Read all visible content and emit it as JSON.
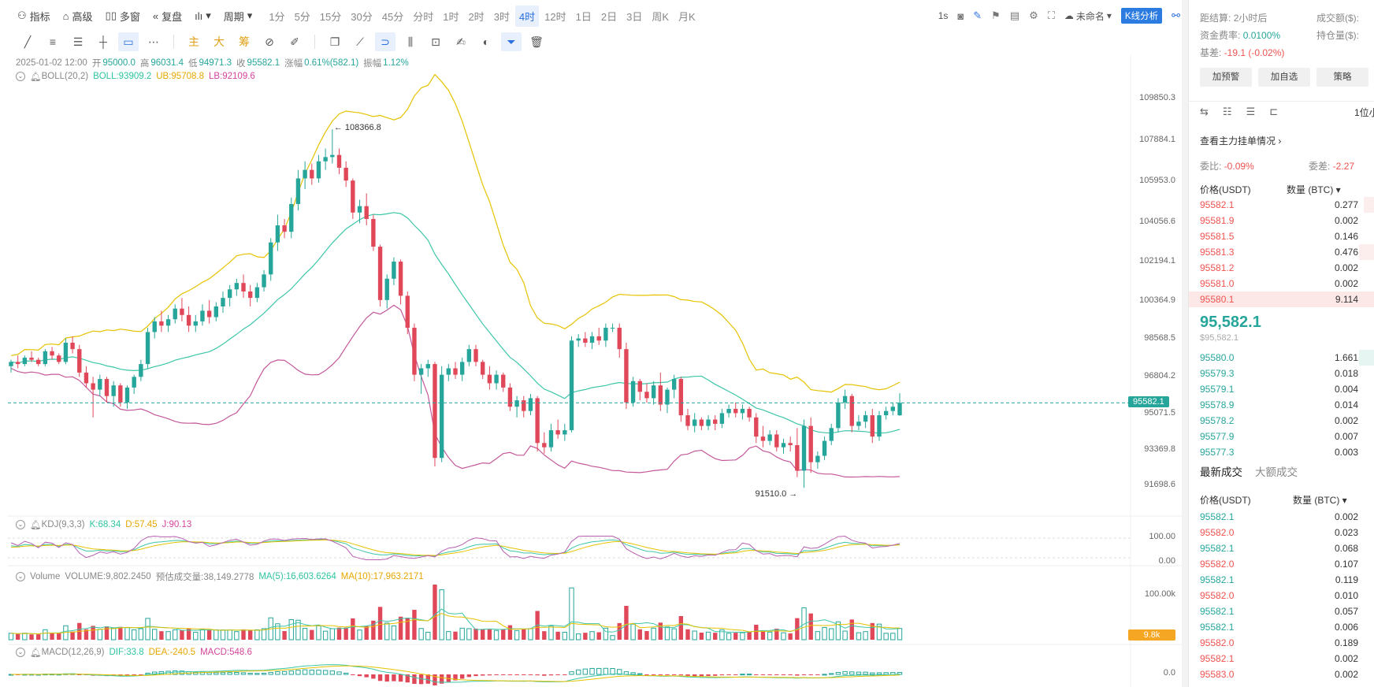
{
  "toolbar": {
    "indicator": "指标",
    "advanced": "高级",
    "multi_window": "多窗",
    "replay": "复盘",
    "period": "周期",
    "intervals": [
      "1分",
      "5分",
      "15分",
      "30分",
      "45分",
      "分时",
      "1时",
      "2时",
      "3时",
      "4时",
      "12时",
      "1日",
      "2日",
      "3日",
      "周K",
      "月K"
    ],
    "active_interval": "4时",
    "resolution": "1s",
    "layout_name": "未命名",
    "kline_analysis": "K线分析"
  },
  "drawbar": {
    "indicators": [
      "主",
      "大",
      "筹"
    ]
  },
  "legend": {
    "date": "2025-01-02 12:00",
    "open_label": "开",
    "open": "95000.0",
    "high_label": "高",
    "high": "96031.4",
    "low_label": "低",
    "low": "94971.3",
    "close_label": "收",
    "close": "95582.1",
    "change_label": "涨幅",
    "change": "0.61%(582.1)",
    "amp_label": "振幅",
    "amp": "1.12%",
    "boll_name": "BOLL(20,2)",
    "boll_mid": "BOLL:93909.2",
    "boll_ub": "UB:95708.8",
    "boll_lb": "LB:92109.6",
    "kdj_name": "KDJ(9,3,3)",
    "kdj_k": "K:68.34",
    "kdj_d": "D:57.45",
    "kdj_j": "J:90.13",
    "vol_name": "Volume",
    "vol_value": "VOLUME:9,802.2450",
    "vol_est": "预估成交量:38,149.2778",
    "vol_ma5": "MA(5):16,603.6264",
    "vol_ma10": "MA(10):17,963.2171",
    "macd_name": "MACD(12,26,9)",
    "macd_dif": "DIF:33.8",
    "macd_dea": "DEA:-240.5",
    "macd_val": "MACD:548.6"
  },
  "price_axis": [
    "109850.3",
    "107884.1",
    "105953.0",
    "104056.6",
    "102194.1",
    "100364.9",
    "98568.5",
    "96804.2",
    "95071.5",
    "93369.8",
    "91698.6"
  ],
  "current_price_tag": "95582.1",
  "kdj_axis": [
    "100.00",
    "0.00"
  ],
  "vol_axis": "100.00k",
  "vol_tag": "9.8k",
  "macd_axis": "0.0",
  "annotations": {
    "high_mark": "108366.8",
    "low_mark": "91510.0"
  },
  "chart_data": {
    "type": "candlestick",
    "interval": "4时",
    "y_range": [
      91200,
      110400
    ],
    "candles": [
      [
        97300,
        97600,
        97000,
        97500
      ],
      [
        97500,
        97800,
        97200,
        97400
      ],
      [
        97400,
        97800,
        97300,
        97700
      ],
      [
        97700,
        98000,
        97500,
        97600
      ],
      [
        97600,
        97700,
        97300,
        97400
      ],
      [
        97400,
        98100,
        97300,
        98000
      ],
      [
        98000,
        98200,
        97600,
        97800
      ],
      [
        97800,
        97900,
        97400,
        97500
      ],
      [
        97500,
        98600,
        97400,
        98400
      ],
      [
        98400,
        98700,
        97900,
        98100
      ],
      [
        98100,
        98300,
        96800,
        97000
      ],
      [
        97000,
        97300,
        96300,
        96500
      ],
      [
        96500,
        96800,
        94900,
        96200
      ],
      [
        96200,
        96900,
        95900,
        96700
      ],
      [
        96700,
        96800,
        95600,
        95900
      ],
      [
        95900,
        96600,
        95400,
        96400
      ],
      [
        96400,
        96500,
        95400,
        95600
      ],
      [
        95600,
        96400,
        95300,
        96300
      ],
      [
        96300,
        96900,
        96000,
        96800
      ],
      [
        96800,
        97600,
        96600,
        97400
      ],
      [
        97400,
        99100,
        97200,
        98900
      ],
      [
        98900,
        99600,
        98600,
        99400
      ],
      [
        99400,
        99900,
        98900,
        99200
      ],
      [
        99200,
        99700,
        98900,
        99500
      ],
      [
        99500,
        100200,
        99300,
        100000
      ],
      [
        100000,
        100500,
        99400,
        99700
      ],
      [
        99700,
        100100,
        98900,
        99200
      ],
      [
        99200,
        99700,
        98900,
        99400
      ],
      [
        99400,
        100200,
        99200,
        99900
      ],
      [
        99900,
        100400,
        99300,
        99600
      ],
      [
        99600,
        100300,
        99400,
        100100
      ],
      [
        100100,
        100800,
        99800,
        100500
      ],
      [
        100500,
        101100,
        100100,
        100900
      ],
      [
        100900,
        101400,
        100600,
        101200
      ],
      [
        101200,
        101600,
        100500,
        100800
      ],
      [
        100800,
        101100,
        100100,
        100500
      ],
      [
        100500,
        101200,
        100300,
        101000
      ],
      [
        101000,
        101800,
        100800,
        101600
      ],
      [
        101600,
        103300,
        101300,
        103100
      ],
      [
        103100,
        104400,
        102700,
        103900
      ],
      [
        103900,
        104200,
        103300,
        103600
      ],
      [
        103600,
        105200,
        103300,
        104900
      ],
      [
        104900,
        106500,
        104600,
        106100
      ],
      [
        106100,
        106900,
        105600,
        106500
      ],
      [
        106500,
        106800,
        105800,
        106100
      ],
      [
        106100,
        107200,
        105900,
        106900
      ],
      [
        106900,
        107500,
        106500,
        107100
      ],
      [
        107100,
        108400,
        106800,
        107200
      ],
      [
        107200,
        107500,
        106300,
        106600
      ],
      [
        106600,
        106900,
        105700,
        106000
      ],
      [
        106000,
        106100,
        104200,
        104500
      ],
      [
        104500,
        105100,
        104000,
        104800
      ],
      [
        104800,
        105400,
        103900,
        104200
      ],
      [
        104200,
        104400,
        102700,
        102900
      ],
      [
        102900,
        103000,
        100100,
        100400
      ],
      [
        100400,
        101600,
        100000,
        101400
      ],
      [
        101400,
        102400,
        101100,
        102200
      ],
      [
        102200,
        102300,
        100200,
        100600
      ],
      [
        100600,
        100800,
        98800,
        99100
      ],
      [
        99100,
        99300,
        96600,
        96900
      ],
      [
        96900,
        97400,
        96000,
        97200
      ],
      [
        97200,
        97600,
        96800,
        97400
      ],
      [
        97400,
        97500,
        92600,
        93000
      ],
      [
        93000,
        97300,
        92800,
        96900
      ],
      [
        96900,
        97400,
        96600,
        97200
      ],
      [
        97200,
        97500,
        96700,
        96900
      ],
      [
        96900,
        97700,
        96600,
        97500
      ],
      [
        97500,
        98300,
        97300,
        98100
      ],
      [
        98100,
        98300,
        97300,
        97500
      ],
      [
        97500,
        97600,
        96700,
        96900
      ],
      [
        96900,
        97300,
        96200,
        96500
      ],
      [
        96500,
        97100,
        96200,
        96900
      ],
      [
        96900,
        97000,
        96100,
        96300
      ],
      [
        96300,
        96500,
        95200,
        95400
      ],
      [
        95400,
        95900,
        94900,
        95700
      ],
      [
        95700,
        95900,
        94900,
        95200
      ],
      [
        95200,
        96000,
        95000,
        95800
      ],
      [
        95800,
        95900,
        93300,
        93700
      ],
      [
        93700,
        94200,
        93200,
        93500
      ],
      [
        93500,
        94600,
        93300,
        94300
      ],
      [
        94300,
        94800,
        93900,
        94100
      ],
      [
        94100,
        94600,
        93800,
        94300
      ],
      [
        94300,
        98700,
        94200,
        98500
      ],
      [
        98500,
        98800,
        98200,
        98600
      ],
      [
        98600,
        98900,
        98200,
        98400
      ],
      [
        98400,
        98900,
        98100,
        98700
      ],
      [
        98700,
        99100,
        98300,
        98500
      ],
      [
        98500,
        99300,
        98200,
        99100
      ],
      [
        99100,
        99300,
        98900,
        99100
      ],
      [
        99100,
        99300,
        97700,
        98100
      ],
      [
        98100,
        98400,
        95300,
        95600
      ],
      [
        95600,
        96800,
        95400,
        96600
      ],
      [
        96600,
        96700,
        95700,
        96100
      ],
      [
        96100,
        96500,
        95600,
        95800
      ],
      [
        95800,
        96600,
        95500,
        96400
      ],
      [
        96400,
        97000,
        95200,
        95500
      ],
      [
        95500,
        96300,
        95100,
        96200
      ],
      [
        96200,
        96900,
        95800,
        96700
      ],
      [
        96700,
        96800,
        94700,
        95000
      ],
      [
        95000,
        95300,
        94300,
        94500
      ],
      [
        94500,
        95100,
        94200,
        94800
      ],
      [
        94800,
        94900,
        94300,
        94500
      ],
      [
        94500,
        95000,
        94300,
        94800
      ],
      [
        94800,
        95000,
        94300,
        94600
      ],
      [
        94600,
        95300,
        94400,
        95100
      ],
      [
        95100,
        95500,
        94900,
        95300
      ],
      [
        95300,
        95600,
        94900,
        95100
      ],
      [
        95100,
        95500,
        94800,
        95300
      ],
      [
        95300,
        95400,
        94700,
        94900
      ],
      [
        94900,
        95100,
        93700,
        94000
      ],
      [
        94000,
        94500,
        93500,
        93800
      ],
      [
        93800,
        94300,
        93600,
        94100
      ],
      [
        94100,
        94300,
        93300,
        93500
      ],
      [
        93500,
        93900,
        93200,
        93700
      ],
      [
        93700,
        94000,
        93300,
        93600
      ],
      [
        93600,
        94400,
        92100,
        92400
      ],
      [
        92400,
        94800,
        91600,
        94500
      ],
      [
        94500,
        94900,
        92300,
        92800
      ],
      [
        92800,
        93300,
        92500,
        93100
      ],
      [
        93100,
        94000,
        92900,
        93800
      ],
      [
        93800,
        94600,
        93600,
        94400
      ],
      [
        94400,
        95800,
        94200,
        95600
      ],
      [
        95600,
        96200,
        95300,
        95900
      ],
      [
        95900,
        96000,
        94200,
        94500
      ],
      [
        94500,
        95000,
        94300,
        94700
      ],
      [
        94700,
        95200,
        94400,
        95000
      ],
      [
        95000,
        95300,
        93700,
        94000
      ],
      [
        94000,
        95200,
        93800,
        95000
      ],
      [
        95000,
        95400,
        94800,
        95200
      ],
      [
        95200,
        95600,
        95000,
        95400
      ],
      [
        95000,
        96031.4,
        94971.3,
        95582.1
      ]
    ]
  }
}
